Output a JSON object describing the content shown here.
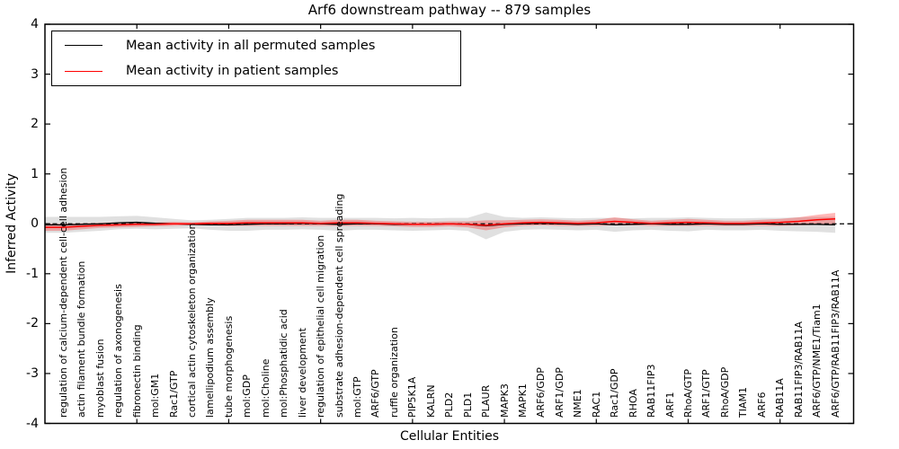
{
  "figure": {
    "title": "Arf6 downstream pathway -- 879 samples",
    "background": "#ffffff",
    "axis_color": "#000000"
  },
  "legend": {
    "position": "upper left",
    "items": [
      {
        "label": "Mean activity in all permuted samples",
        "color": "#000000"
      },
      {
        "label": "Mean activity in patient samples",
        "color": "#ff0000"
      }
    ]
  },
  "chart_data": {
    "type": "line",
    "title": "Arf6 downstream pathway -- 879 samples",
    "xlabel": "Cellular Entities",
    "ylabel": "Inferred Activity",
    "ylim": [
      -4,
      4
    ],
    "yticks": [
      "-4",
      "-3",
      "-2",
      "-1",
      "0",
      "1",
      "2",
      "3",
      "4"
    ],
    "xlim": [
      0,
      44
    ],
    "xticks": [
      5,
      10,
      15,
      20,
      25,
      30,
      35,
      40
    ],
    "grid": false,
    "legend_position": "upper left",
    "zero_line": {
      "y": 0,
      "style": "dashed",
      "color": "#000000"
    },
    "categories": [
      "regulation of calcium-dependent cell-cell adhesion",
      "actin filament bundle formation",
      "myoblast fusion",
      "regulation of axonogenesis",
      "fibronectin binding",
      "mol:GM1",
      "Rac1/GTP",
      "cortical actin cytoskeleton organization",
      "lamellipodium assembly",
      "tube morphogenesis",
      "mol:GDP",
      "mol:Choline",
      "mol:Phosphatidic acid",
      "liver development",
      "regulation of epithelial cell migration",
      "substrate adhesion-dependent cell spreading",
      "mol:GTP",
      "ARF6/GTP",
      "ruffle organization",
      "PIP5K1A",
      "KALRN",
      "PLD2",
      "PLD1",
      "PLAUR",
      "MAPK3",
      "MAPK1",
      "ARF6/GDP",
      "ARF1/GDP",
      "NME1",
      "RAC1",
      "Rac1/GDP",
      "RHOA",
      "RAB11FIP3",
      "ARF1",
      "RhoA/GTP",
      "ARF1/GTP",
      "RhoA/GDP",
      "TIAM1",
      "ARF6",
      "RAB11A",
      "RAB11FIP3/RAB11A",
      "ARF6/GTP/NME1/Tiam1",
      "ARF6/GTP/RAB11FIP3/RAB11A"
    ],
    "series": [
      {
        "name": "Mean activity in all permuted samples",
        "color": "#000000",
        "band_color": "#999999",
        "band_opacity": 0.3,
        "values": [
          -0.02,
          -0.01,
          0.0,
          0.02,
          0.03,
          0.01,
          0.0,
          -0.01,
          -0.02,
          -0.02,
          -0.01,
          0.0,
          0.0,
          0.01,
          0.0,
          -0.01,
          0.0,
          0.0,
          -0.01,
          -0.01,
          -0.01,
          0.0,
          -0.01,
          -0.04,
          -0.01,
          0.0,
          0.01,
          0.0,
          -0.01,
          0.0,
          -0.02,
          -0.01,
          0.0,
          -0.01,
          -0.01,
          0.0,
          -0.01,
          -0.01,
          0.0,
          -0.01,
          -0.01,
          -0.01,
          -0.02
        ],
        "band_halfwidth": [
          0.16,
          0.15,
          0.14,
          0.13,
          0.13,
          0.12,
          0.1,
          0.08,
          0.1,
          0.12,
          0.13,
          0.12,
          0.12,
          0.12,
          0.12,
          0.13,
          0.12,
          0.12,
          0.12,
          0.13,
          0.12,
          0.12,
          0.13,
          0.27,
          0.15,
          0.12,
          0.12,
          0.12,
          0.12,
          0.12,
          0.14,
          0.12,
          0.12,
          0.13,
          0.14,
          0.12,
          0.12,
          0.12,
          0.12,
          0.13,
          0.14,
          0.15,
          0.16
        ]
      },
      {
        "name": "Mean activity in patient samples",
        "color": "#ff0000",
        "band_color": "#ff0000",
        "band_opacity": 0.28,
        "values": [
          -0.07,
          -0.05,
          -0.03,
          -0.02,
          -0.01,
          -0.01,
          0.0,
          0.0,
          0.01,
          0.01,
          0.02,
          0.02,
          0.02,
          0.02,
          0.01,
          0.02,
          0.02,
          0.01,
          0.0,
          -0.01,
          -0.01,
          0.0,
          -0.01,
          -0.03,
          0.0,
          0.02,
          0.03,
          0.02,
          0.01,
          0.02,
          0.05,
          0.03,
          0.01,
          0.02,
          0.03,
          0.02,
          0.01,
          0.01,
          0.02,
          0.03,
          0.05,
          0.08,
          0.1
        ],
        "band_halfwidth": [
          0.07,
          0.06,
          0.05,
          0.05,
          0.05,
          0.04,
          0.04,
          0.03,
          0.04,
          0.05,
          0.06,
          0.06,
          0.06,
          0.06,
          0.05,
          0.06,
          0.06,
          0.05,
          0.05,
          0.05,
          0.05,
          0.05,
          0.06,
          0.1,
          0.07,
          0.06,
          0.06,
          0.06,
          0.05,
          0.06,
          0.08,
          0.06,
          0.05,
          0.06,
          0.07,
          0.06,
          0.05,
          0.05,
          0.06,
          0.07,
          0.08,
          0.1,
          0.12
        ]
      }
    ]
  }
}
